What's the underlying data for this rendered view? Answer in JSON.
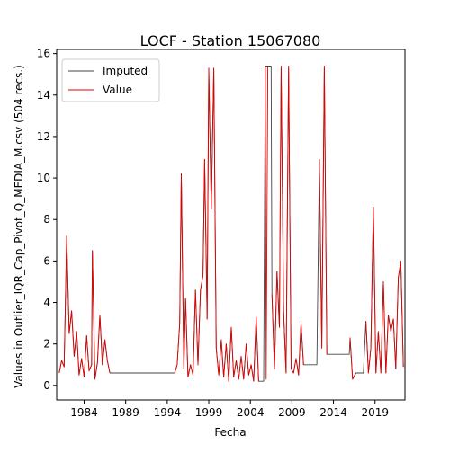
{
  "chart_data": {
    "type": "line",
    "title": "LOCF - Station 15067080",
    "xlabel": "Fecha",
    "ylabel": "Values in Outlier_IQR_Cap_Pivot_Q_MEDIA_M.csv (504 recs.)",
    "xlim": [
      1980.7,
      2022.6
    ],
    "ylim": [
      -0.7,
      16.2
    ],
    "xticks": [
      1984,
      1989,
      1994,
      1999,
      2004,
      2009,
      2014,
      2019
    ],
    "yticks": [
      0,
      2,
      4,
      6,
      8,
      10,
      12,
      14,
      16
    ],
    "grid": false,
    "legend": {
      "placement": "top-left",
      "entries": [
        "Imputed",
        "Value"
      ]
    },
    "colors": {
      "Imputed": "#444444",
      "Value": "#e00000"
    },
    "series": [
      {
        "name": "Imputed",
        "points": [
          [
            1981.0,
            0.6
          ],
          [
            1981.3,
            1.2
          ],
          [
            1981.6,
            0.9
          ],
          [
            1981.9,
            7.2
          ],
          [
            1982.2,
            2.5
          ],
          [
            1982.5,
            3.6
          ],
          [
            1982.8,
            1.4
          ],
          [
            1983.1,
            2.6
          ],
          [
            1983.4,
            0.5
          ],
          [
            1983.7,
            1.3
          ],
          [
            1984.0,
            0.4
          ],
          [
            1984.3,
            2.4
          ],
          [
            1984.6,
            0.7
          ],
          [
            1984.9,
            1.0
          ],
          [
            1985.0,
            6.5
          ],
          [
            1985.3,
            0.3
          ],
          [
            1985.6,
            1.1
          ],
          [
            1985.9,
            3.4
          ],
          [
            1986.2,
            1.0
          ],
          [
            1986.5,
            2.2
          ],
          [
            1986.8,
            1.2
          ],
          [
            1987.1,
            0.6
          ],
          [
            1994.9,
            0.6
          ],
          [
            1995.2,
            1.0
          ],
          [
            1995.5,
            3.0
          ],
          [
            1995.7,
            10.2
          ],
          [
            1996.0,
            0.8
          ],
          [
            1996.2,
            4.2
          ],
          [
            1996.5,
            0.4
          ],
          [
            1996.8,
            1.0
          ],
          [
            1997.1,
            0.5
          ],
          [
            1997.4,
            4.6
          ],
          [
            1997.7,
            1.0
          ],
          [
            1998.0,
            4.6
          ],
          [
            1998.3,
            5.3
          ],
          [
            1998.5,
            10.9
          ],
          [
            1998.8,
            3.2
          ],
          [
            1999.0,
            15.3
          ],
          [
            1999.3,
            8.5
          ],
          [
            1999.6,
            15.3
          ],
          [
            1999.9,
            1.8
          ],
          [
            2000.2,
            0.5
          ],
          [
            2000.5,
            2.2
          ],
          [
            2000.8,
            0.4
          ],
          [
            2001.1,
            2.0
          ],
          [
            2001.4,
            0.2
          ],
          [
            2001.7,
            2.8
          ],
          [
            2002.0,
            0.4
          ],
          [
            2002.3,
            1.2
          ],
          [
            2002.6,
            0.3
          ],
          [
            2002.9,
            1.4
          ],
          [
            2003.2,
            0.3
          ],
          [
            2003.5,
            2.0
          ],
          [
            2003.8,
            0.5
          ],
          [
            2004.1,
            1.0
          ],
          [
            2004.4,
            0.2
          ],
          [
            2004.7,
            3.3
          ],
          [
            2005.0,
            0.2
          ],
          [
            2005.6,
            0.2
          ],
          [
            2005.8,
            15.4
          ],
          [
            2006.5,
            15.4
          ],
          [
            2006.6,
            4.4
          ],
          [
            2006.9,
            0.8
          ],
          [
            2007.2,
            5.5
          ],
          [
            2007.5,
            2.8
          ],
          [
            2007.7,
            15.4
          ],
          [
            2008.0,
            3.5
          ],
          [
            2008.3,
            0.6
          ],
          [
            2008.6,
            15.4
          ],
          [
            2008.9,
            0.8
          ],
          [
            2009.2,
            0.6
          ],
          [
            2009.5,
            1.3
          ],
          [
            2009.8,
            0.5
          ],
          [
            2010.1,
            3.0
          ],
          [
            2010.4,
            1.0
          ],
          [
            2012.0,
            1.0
          ],
          [
            2012.3,
            10.9
          ],
          [
            2012.6,
            1.8
          ],
          [
            2012.9,
            15.4
          ],
          [
            2013.2,
            1.5
          ],
          [
            2015.9,
            1.5
          ],
          [
            2016.0,
            2.3
          ],
          [
            2016.3,
            0.3
          ],
          [
            2016.7,
            0.6
          ],
          [
            2017.6,
            0.6
          ],
          [
            2017.9,
            3.1
          ],
          [
            2018.2,
            0.6
          ],
          [
            2018.5,
            1.8
          ],
          [
            2018.8,
            8.6
          ],
          [
            2019.1,
            0.6
          ],
          [
            2019.4,
            2.6
          ],
          [
            2019.7,
            0.6
          ],
          [
            2020.0,
            5.0
          ],
          [
            2020.3,
            0.6
          ],
          [
            2020.6,
            3.4
          ],
          [
            2020.9,
            2.6
          ],
          [
            2021.2,
            3.2
          ],
          [
            2021.5,
            0.8
          ],
          [
            2021.8,
            5.2
          ],
          [
            2022.1,
            6.0
          ],
          [
            2022.4,
            0.9
          ]
        ]
      },
      {
        "name": "Value",
        "segments": [
          [
            [
              1981.0,
              0.6
            ],
            [
              1981.3,
              1.2
            ],
            [
              1981.6,
              0.9
            ],
            [
              1981.9,
              7.2
            ],
            [
              1982.2,
              2.5
            ],
            [
              1982.5,
              3.6
            ],
            [
              1982.8,
              1.4
            ],
            [
              1983.1,
              2.6
            ],
            [
              1983.4,
              0.5
            ],
            [
              1983.7,
              1.3
            ],
            [
              1984.0,
              0.4
            ],
            [
              1984.3,
              2.4
            ],
            [
              1984.6,
              0.7
            ],
            [
              1984.9,
              1.0
            ],
            [
              1985.0,
              6.5
            ],
            [
              1985.3,
              0.3
            ],
            [
              1985.6,
              1.1
            ],
            [
              1985.9,
              3.4
            ],
            [
              1986.2,
              1.0
            ],
            [
              1986.5,
              2.2
            ],
            [
              1986.8,
              1.2
            ],
            [
              1987.1,
              0.6
            ]
          ],
          [
            [
              1994.9,
              0.6
            ],
            [
              1995.2,
              1.0
            ],
            [
              1995.5,
              3.0
            ],
            [
              1995.7,
              10.2
            ],
            [
              1996.0,
              0.8
            ],
            [
              1996.2,
              4.2
            ],
            [
              1996.5,
              0.4
            ],
            [
              1996.8,
              1.0
            ],
            [
              1997.1,
              0.5
            ],
            [
              1997.4,
              4.6
            ],
            [
              1997.7,
              1.0
            ],
            [
              1998.0,
              4.6
            ],
            [
              1998.3,
              5.3
            ],
            [
              1998.5,
              10.9
            ],
            [
              1998.8,
              3.2
            ],
            [
              1999.0,
              15.3
            ],
            [
              1999.3,
              8.5
            ],
            [
              1999.6,
              15.3
            ],
            [
              1999.9,
              1.8
            ],
            [
              2000.2,
              0.5
            ],
            [
              2000.5,
              2.2
            ],
            [
              2000.8,
              0.4
            ],
            [
              2001.1,
              2.0
            ],
            [
              2001.4,
              0.2
            ],
            [
              2001.7,
              2.8
            ],
            [
              2002.0,
              0.4
            ],
            [
              2002.3,
              1.2
            ],
            [
              2002.6,
              0.3
            ],
            [
              2002.9,
              1.4
            ],
            [
              2003.2,
              0.3
            ],
            [
              2003.5,
              2.0
            ],
            [
              2003.8,
              0.5
            ],
            [
              2004.1,
              1.0
            ],
            [
              2004.4,
              0.2
            ],
            [
              2004.7,
              3.3
            ],
            [
              2005.0,
              0.2
            ]
          ],
          [
            [
              2005.8,
              15.4
            ],
            [
              2005.9,
              0.3
            ],
            [
              2006.1,
              15.4
            ]
          ],
          [
            [
              2006.6,
              4.4
            ],
            [
              2006.9,
              0.8
            ],
            [
              2007.2,
              5.5
            ],
            [
              2007.5,
              2.8
            ],
            [
              2007.7,
              15.4
            ],
            [
              2008.0,
              3.5
            ],
            [
              2008.3,
              0.6
            ],
            [
              2008.6,
              15.4
            ],
            [
              2008.9,
              0.8
            ],
            [
              2009.2,
              0.6
            ],
            [
              2009.5,
              1.3
            ],
            [
              2009.8,
              0.5
            ],
            [
              2010.1,
              3.0
            ],
            [
              2010.4,
              1.0
            ]
          ],
          [
            [
              2012.3,
              10.9
            ],
            [
              2012.6,
              1.8
            ],
            [
              2012.9,
              15.4
            ],
            [
              2013.2,
              1.5
            ]
          ],
          [
            [
              2016.0,
              2.3
            ],
            [
              2016.3,
              0.3
            ],
            [
              2016.7,
              0.6
            ]
          ],
          [
            [
              2017.9,
              3.1
            ],
            [
              2018.2,
              0.6
            ],
            [
              2018.5,
              1.8
            ],
            [
              2018.8,
              8.6
            ],
            [
              2019.1,
              0.6
            ],
            [
              2019.4,
              2.6
            ],
            [
              2019.7,
              0.6
            ],
            [
              2020.0,
              5.0
            ],
            [
              2020.3,
              0.6
            ],
            [
              2020.6,
              3.4
            ],
            [
              2020.9,
              2.6
            ],
            [
              2021.2,
              3.2
            ],
            [
              2021.5,
              0.8
            ],
            [
              2021.8,
              5.2
            ],
            [
              2022.1,
              6.0
            ],
            [
              2022.4,
              0.9
            ]
          ]
        ]
      }
    ]
  }
}
